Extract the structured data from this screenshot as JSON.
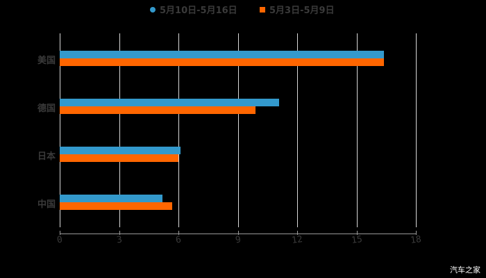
{
  "chart_data": {
    "type": "bar",
    "orientation": "horizontal",
    "title": "",
    "xlabel": "",
    "ylabel": "",
    "categories": [
      "美国",
      "德国",
      "日本",
      "中国"
    ],
    "series": [
      {
        "name": "5月10日-5月16日",
        "color": "#3399cc",
        "values": [
          16.4,
          11.1,
          6.1,
          5.2
        ]
      },
      {
        "name": "5月3日-5月9日",
        "color": "#ff6600",
        "values": [
          16.4,
          9.9,
          6.0,
          5.7
        ]
      }
    ],
    "xlim": [
      0,
      18
    ],
    "xticks": [
      "0",
      "3",
      "6",
      "9",
      "12",
      "15",
      "18"
    ],
    "grid": true,
    "legend_position": "top"
  },
  "legend": {
    "series1": "5月10日-5月16日",
    "series2": "5月3日-5月9日"
  },
  "watermark": "汽车之家"
}
